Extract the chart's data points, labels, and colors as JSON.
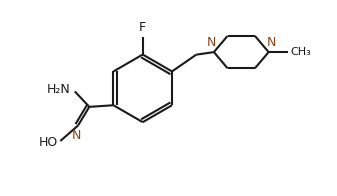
{
  "bg_color": "#ffffff",
  "bond_color": "#1a1a1a",
  "n_color": "#8B4513",
  "line_width": 1.5,
  "figsize": [
    3.37,
    1.96
  ],
  "dpi": 100,
  "xlim": [
    0,
    10
  ],
  "ylim": [
    0,
    6
  ]
}
